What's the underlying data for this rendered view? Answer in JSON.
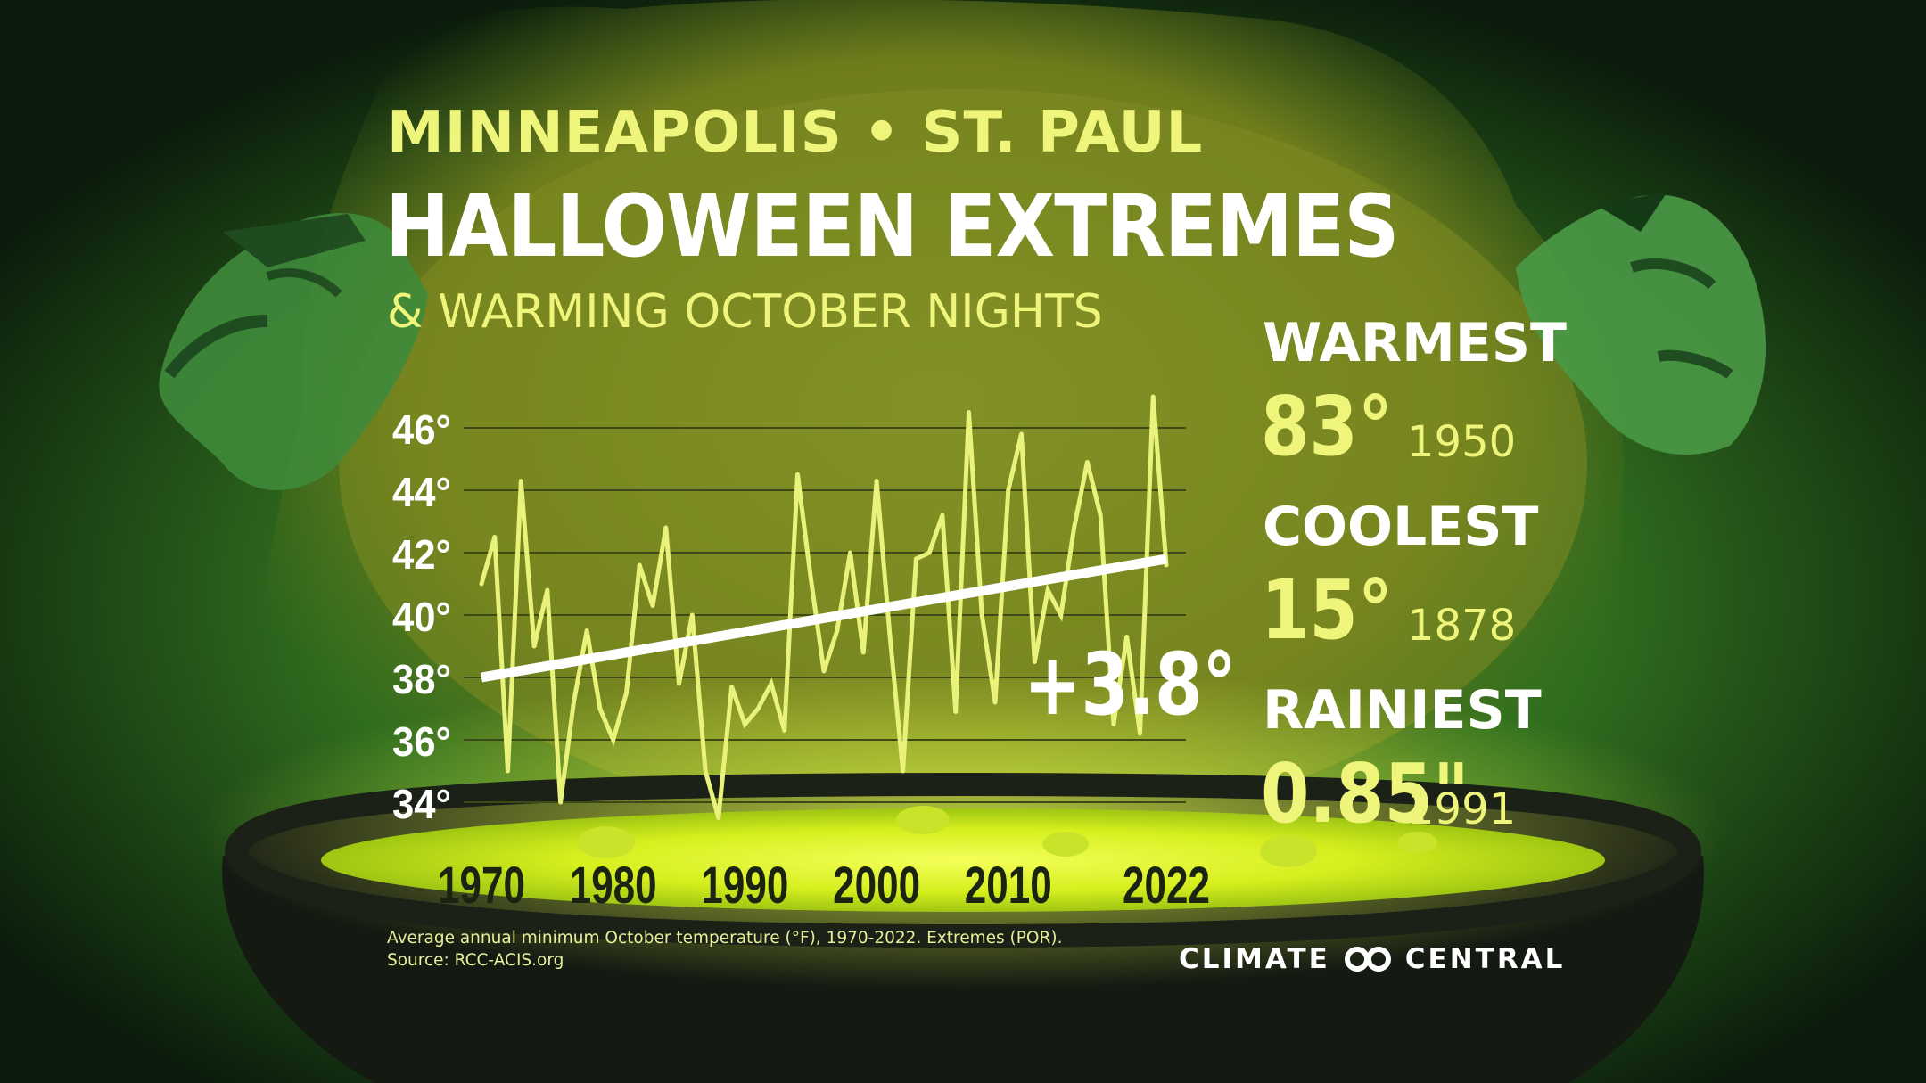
{
  "header": {
    "location": "MINNEAPOLIS • ST. PAUL",
    "title": "HALLOWEEN EXTREMES",
    "subtitle": "& WARMING OCTOBER NIGHTS"
  },
  "stats": {
    "warmest": {
      "label": "WARMEST",
      "value": "83°",
      "year": "1950"
    },
    "coolest": {
      "label": "COOLEST",
      "value": "15°",
      "year": "1878"
    },
    "rainiest": {
      "label": "RAINIEST",
      "value": "0.85\"",
      "year": "1991"
    }
  },
  "footer": {
    "note": "Average annual minimum October temperature (°F), 1970-2022. Extremes (POR).",
    "source": "Source: RCC-ACIS.org",
    "brand_left": "CLIMATE",
    "brand_right": "CENTRAL"
  },
  "colors": {
    "line": "#e9f27a",
    "trend": "#ffffff",
    "accent": "#eef57a",
    "grid": "#3d4a16"
  },
  "chart_data": {
    "type": "line",
    "xlabel": "",
    "ylabel": "",
    "x_ticks": [
      "1970",
      "1980",
      "1990",
      "2000",
      "2010",
      "2022"
    ],
    "y_ticks": [
      "46°",
      "44°",
      "42°",
      "40°",
      "38°",
      "36°",
      "34°"
    ],
    "ylim": [
      34,
      46
    ],
    "xlim": [
      1970,
      2022
    ],
    "grid": true,
    "series": [
      {
        "x": [
          1970,
          1971,
          1972,
          1973,
          1974,
          1975,
          1976,
          1977,
          1978,
          1979,
          1980,
          1981,
          1982,
          1983,
          1984,
          1985,
          1986,
          1987,
          1988,
          1989,
          1990,
          1991,
          1992,
          1993,
          1994,
          1995,
          1996,
          1997,
          1998,
          1999,
          2000,
          2001,
          2002,
          2003,
          2004,
          2005,
          2006,
          2007,
          2008,
          2009,
          2010,
          2011,
          2012,
          2013,
          2014,
          2015,
          2016,
          2017,
          2018,
          2019,
          2020,
          2021,
          2022
        ],
        "values": [
          41.0,
          42.5,
          35.0,
          44.3,
          39.0,
          40.8,
          34.0,
          37.2,
          39.5,
          37.0,
          36.0,
          37.5,
          41.6,
          40.3,
          42.8,
          37.8,
          40.0,
          35.0,
          33.5,
          37.7,
          36.5,
          37.0,
          37.8,
          36.3,
          44.5,
          41.2,
          38.2,
          39.5,
          42.0,
          38.8,
          44.3,
          39.4,
          35.0,
          41.8,
          42.0,
          43.2,
          36.9,
          46.5,
          40.0,
          37.2,
          44.0,
          45.8,
          38.5,
          40.8,
          40.0,
          42.8,
          44.9,
          43.2,
          36.5,
          39.3,
          36.2,
          47.0,
          41.6
        ]
      }
    ],
    "trend": {
      "start": [
        1970,
        38.0
      ],
      "end": [
        2022,
        41.8
      ],
      "label": "+3.8°"
    }
  }
}
